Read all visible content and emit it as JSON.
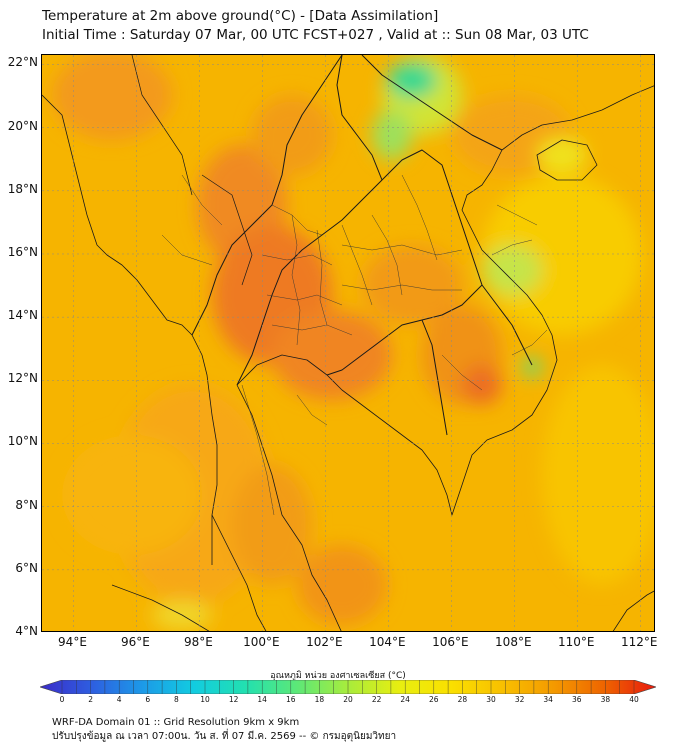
{
  "title": {
    "line1": "Temperature at 2m above ground(°C) - [Data Assimilation]",
    "line2": "Initial Time : Saturday 07 Mar, 00 UTC FCST+027 , Valid at :: Sun 08 Mar, 03 UTC"
  },
  "map": {
    "lon_range": [
      93,
      112.5
    ],
    "lat_range": [
      4,
      22.3
    ],
    "lat_ticks": [
      {
        "value": 22,
        "label": "22°N"
      },
      {
        "value": 20,
        "label": "20°N"
      },
      {
        "value": 18,
        "label": "18°N"
      },
      {
        "value": 16,
        "label": "16°N"
      },
      {
        "value": 14,
        "label": "14°N"
      },
      {
        "value": 12,
        "label": "12°N"
      },
      {
        "value": 10,
        "label": "10°N"
      },
      {
        "value": 8,
        "label": "8°N"
      },
      {
        "value": 6,
        "label": "6°N"
      },
      {
        "value": 4,
        "label": "4°N"
      }
    ],
    "lon_ticks": [
      {
        "value": 94,
        "label": "94°E"
      },
      {
        "value": 96,
        "label": "96°E"
      },
      {
        "value": 98,
        "label": "98°E"
      },
      {
        "value": 100,
        "label": "100°E"
      },
      {
        "value": 102,
        "label": "102°E"
      },
      {
        "value": 104,
        "label": "104°E"
      },
      {
        "value": 106,
        "label": "106°E"
      },
      {
        "value": 108,
        "label": "108°E"
      },
      {
        "value": 110,
        "label": "110°E"
      },
      {
        "value": 112,
        "label": "112°E"
      }
    ],
    "base_color": "#f6b400"
  },
  "colorbar": {
    "title": "อุณหภูมิ หน่วย องศาเซลเซียส (°C)",
    "ticks": [
      "0",
      "2",
      "4",
      "6",
      "8",
      "10",
      "12",
      "14",
      "16",
      "18",
      "20",
      "22",
      "24",
      "26",
      "28",
      "30",
      "32",
      "34",
      "36",
      "38",
      "40"
    ],
    "min": 0,
    "max": 40,
    "colors": [
      "#3b2cc8",
      "#2e5ee0",
      "#1c9ae8",
      "#12cce0",
      "#22e0b0",
      "#5ce878",
      "#a8ec3c",
      "#e8ee10",
      "#fae000",
      "#f8c000",
      "#f49a00",
      "#ee6400",
      "#e81a0e"
    ]
  },
  "footer": {
    "line1": "WRF-DA Domain 01 :: Grid Resolution 9km x 9km",
    "line2": "ปรับปรุงข้อมูล ณ เวลา 07:00น. วัน ส. ที่ 07 มี.ค. 2569 -- © กรมอุตุนิยมวิทยา"
  }
}
